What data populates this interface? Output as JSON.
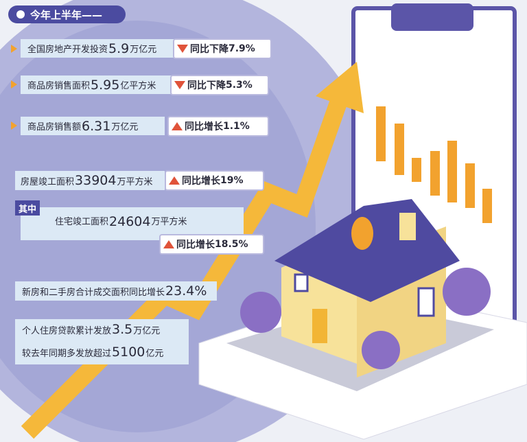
{
  "header": {
    "title": "今年上半年——"
  },
  "items": [
    {
      "label": "全国房地产开发投资",
      "number": "5.9",
      "unit": "万亿元",
      "change_text": "同比下降",
      "change_number": "7.9%"
    },
    {
      "label": "商品房销售面积",
      "number": "5.95",
      "unit": "亿平方米",
      "change_text": "同比下降",
      "change_number": "5.3%"
    },
    {
      "label": "商品房销售额",
      "number": "6.31",
      "unit": "万亿元",
      "change_text": "同比增长",
      "change_number": "1.1%"
    },
    {
      "label": "房屋竣工面积",
      "number": "33904",
      "unit": "万平方米",
      "change_text": "同比增长",
      "change_number": "19%"
    },
    {
      "tag": "其中",
      "label": "住宅竣工面积",
      "number": "24604",
      "unit": "万平方米",
      "change_text": "同比增长",
      "change_number": "18.5%"
    },
    {
      "label": "新房和二手房合计成交面积同比增长",
      "number": "23.4%"
    },
    {
      "label": "个人住房贷款累计发放",
      "number": "3.5",
      "unit": "万亿元",
      "label2": "较去年同期多发放超过",
      "number2": "5100",
      "unit2": "亿元"
    }
  ]
}
